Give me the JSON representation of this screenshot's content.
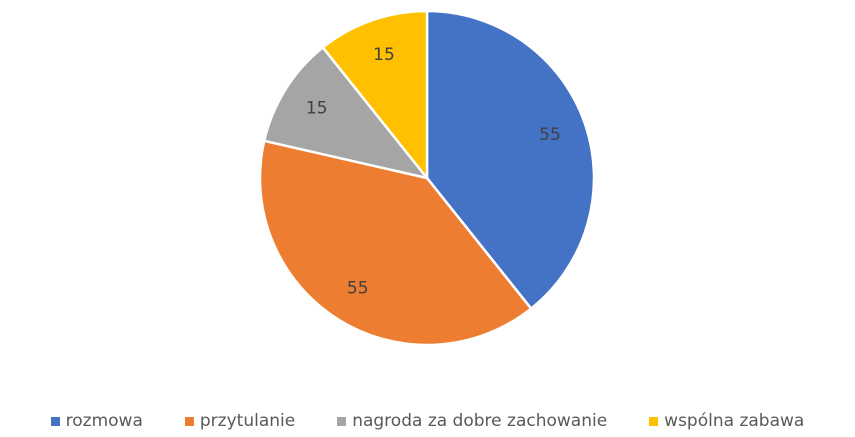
{
  "chart_data": {
    "type": "pie",
    "categories": [
      "rozmowa",
      "przytulanie",
      "nagroda za dobre zachowanie",
      "wspólna zabawa"
    ],
    "values": [
      55,
      55,
      15,
      15
    ],
    "colors": [
      "#4472c4",
      "#ed7d31",
      "#a5a5a5",
      "#ffc000"
    ],
    "legend": "bottom"
  }
}
